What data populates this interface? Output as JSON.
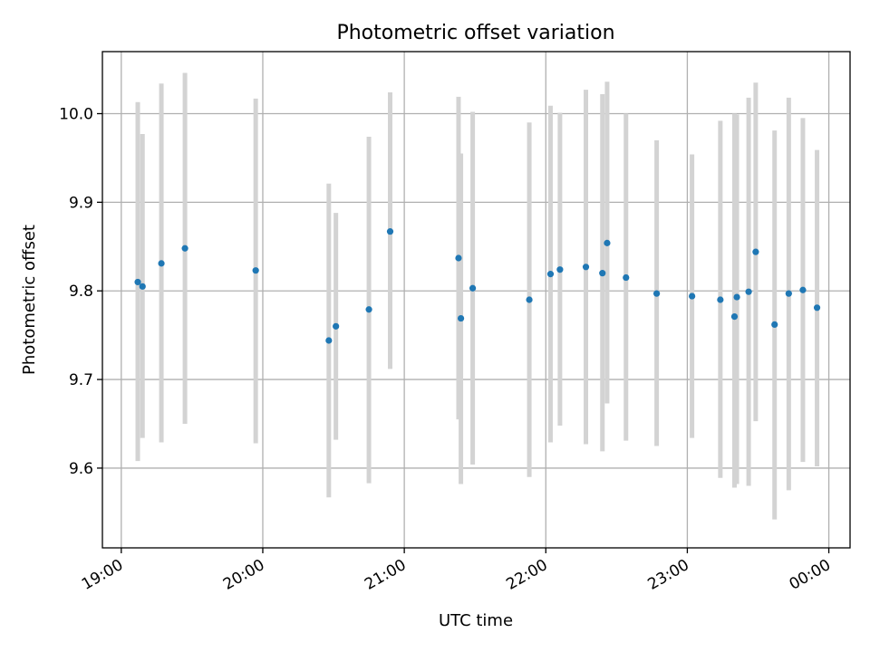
{
  "chart_data": {
    "type": "scatter",
    "title": "Photometric offset variation",
    "xlabel": "UTC time",
    "ylabel": "Photometric offset",
    "xlim": [
      "18:52",
      "00:09"
    ],
    "ylim": [
      9.51,
      10.07
    ],
    "grid": true,
    "x_ticks": [
      "19:00",
      "20:00",
      "21:00",
      "22:00",
      "23:00",
      "00:00"
    ],
    "y_ticks": [
      "9.6",
      "9.7",
      "9.8",
      "9.9",
      "10.0"
    ],
    "colors": {
      "points": "#1f77b4",
      "errorbars": "#d3d3d3",
      "grid": "#b0b0b0"
    },
    "series": [
      {
        "values": [
          {
            "x": "19:07",
            "y": 9.81,
            "yerr_low": 9.608,
            "yerr_high": 10.013
          },
          {
            "x": "19:09",
            "y": 9.805,
            "yerr_low": 9.634,
            "yerr_high": 9.977
          },
          {
            "x": "19:17",
            "y": 9.831,
            "yerr_low": 9.629,
            "yerr_high": 10.034
          },
          {
            "x": "19:27",
            "y": 9.848,
            "yerr_low": 9.65,
            "yerr_high": 10.046
          },
          {
            "x": "19:57",
            "y": 9.823,
            "yerr_low": 9.628,
            "yerr_high": 10.017
          },
          {
            "x": "20:28",
            "y": 9.744,
            "yerr_low": 9.567,
            "yerr_high": 9.921
          },
          {
            "x": "20:31",
            "y": 9.76,
            "yerr_low": 9.632,
            "yerr_high": 9.888
          },
          {
            "x": "20:45",
            "y": 9.779,
            "yerr_low": 9.583,
            "yerr_high": 9.974
          },
          {
            "x": "20:54",
            "y": 9.867,
            "yerr_low": 9.712,
            "yerr_high": 10.024
          },
          {
            "x": "21:23",
            "y": 9.837,
            "yerr_low": 9.655,
            "yerr_high": 10.019
          },
          {
            "x": "21:24",
            "y": 9.769,
            "yerr_low": 9.582,
            "yerr_high": 9.955
          },
          {
            "x": "21:29",
            "y": 9.803,
            "yerr_low": 9.604,
            "yerr_high": 10.002
          },
          {
            "x": "21:53",
            "y": 9.79,
            "yerr_low": 9.59,
            "yerr_high": 9.99
          },
          {
            "x": "22:02",
            "y": 9.819,
            "yerr_low": 9.629,
            "yerr_high": 10.009
          },
          {
            "x": "22:06",
            "y": 9.824,
            "yerr_low": 9.648,
            "yerr_high": 10.001
          },
          {
            "x": "22:17",
            "y": 9.827,
            "yerr_low": 9.627,
            "yerr_high": 10.027
          },
          {
            "x": "22:24",
            "y": 9.82,
            "yerr_low": 9.619,
            "yerr_high": 10.022
          },
          {
            "x": "22:26",
            "y": 9.854,
            "yerr_low": 9.673,
            "yerr_high": 10.036
          },
          {
            "x": "22:34",
            "y": 9.815,
            "yerr_low": 9.631,
            "yerr_high": 10.0
          },
          {
            "x": "22:47",
            "y": 9.797,
            "yerr_low": 9.625,
            "yerr_high": 9.97
          },
          {
            "x": "23:02",
            "y": 9.794,
            "yerr_low": 9.634,
            "yerr_high": 9.954
          },
          {
            "x": "23:14",
            "y": 9.79,
            "yerr_low": 9.589,
            "yerr_high": 9.992
          },
          {
            "x": "23:20",
            "y": 9.771,
            "yerr_low": 9.578,
            "yerr_high": 10.0
          },
          {
            "x": "23:21",
            "y": 9.793,
            "yerr_low": 9.582,
            "yerr_high": 9.999
          },
          {
            "x": "23:26",
            "y": 9.799,
            "yerr_low": 9.58,
            "yerr_high": 10.018
          },
          {
            "x": "23:29",
            "y": 9.844,
            "yerr_low": 9.653,
            "yerr_high": 10.035
          },
          {
            "x": "23:37",
            "y": 9.762,
            "yerr_low": 9.542,
            "yerr_high": 9.981
          },
          {
            "x": "23:43",
            "y": 9.797,
            "yerr_low": 9.575,
            "yerr_high": 10.018
          },
          {
            "x": "23:49",
            "y": 9.801,
            "yerr_low": 9.607,
            "yerr_high": 9.995
          },
          {
            "x": "23:55",
            "y": 9.781,
            "yerr_low": 9.602,
            "yerr_high": 9.959
          }
        ]
      }
    ]
  }
}
